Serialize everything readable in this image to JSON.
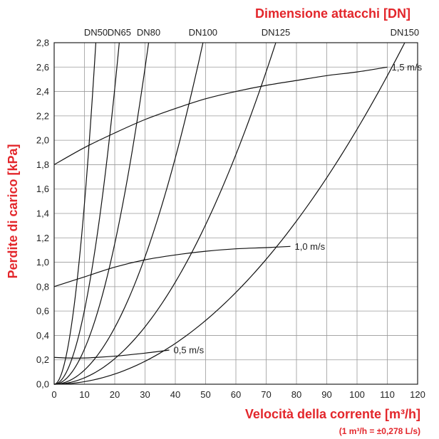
{
  "chart_data": {
    "type": "line",
    "title": "Dimensione attacchi [DN]",
    "xlabel": "Velocità della corrente [m³/h]",
    "ylabel": "Perdite di carico [kPa]",
    "note": "(1 m³/h = ±0,278 L/s)",
    "xlim": [
      0,
      120
    ],
    "ylim": [
      0,
      2.8
    ],
    "xticks": [
      "0",
      "10",
      "20",
      "30",
      "40",
      "50",
      "60",
      "70",
      "80",
      "90",
      "100",
      "110",
      "120"
    ],
    "yticks": [
      "0,0",
      "0,2",
      "0,4",
      "0,6",
      "0,8",
      "1,0",
      "1,2",
      "1,4",
      "1,6",
      "1,8",
      "2,0",
      "2,2",
      "2,4",
      "2,6",
      "2,8"
    ],
    "grid": true,
    "accent_color": "#e3262b",
    "series": [
      {
        "name": "DN50",
        "k": 0.0148
      },
      {
        "name": "DN65",
        "k": 0.00606
      },
      {
        "name": "DN80",
        "k": 0.00288
      },
      {
        "name": "DN100",
        "k": 0.00116
      },
      {
        "name": "DN125",
        "k": 0.000523
      },
      {
        "name": "DN150",
        "k": 0.000209
      }
    ],
    "velocity_curves": [
      {
        "name": "1,5 m/s",
        "points": [
          [
            0,
            1.8
          ],
          [
            10,
            1.94
          ],
          [
            20,
            2.06
          ],
          [
            30,
            2.17
          ],
          [
            40,
            2.26
          ],
          [
            50,
            2.34
          ],
          [
            60,
            2.4
          ],
          [
            70,
            2.45
          ],
          [
            80,
            2.49
          ],
          [
            90,
            2.53
          ],
          [
            100,
            2.56
          ],
          [
            110,
            2.6
          ]
        ]
      },
      {
        "name": "1,0 m/s",
        "points": [
          [
            0,
            0.8
          ],
          [
            10,
            0.88
          ],
          [
            20,
            0.96
          ],
          [
            30,
            1.02
          ],
          [
            40,
            1.06
          ],
          [
            50,
            1.09
          ],
          [
            60,
            1.11
          ],
          [
            70,
            1.12
          ],
          [
            78,
            1.13
          ]
        ]
      },
      {
        "name": "0,5 m/s",
        "points": [
          [
            0,
            0.22
          ],
          [
            5,
            0.215
          ],
          [
            10,
            0.215
          ],
          [
            20,
            0.23
          ],
          [
            30,
            0.255
          ],
          [
            38,
            0.28
          ]
        ]
      }
    ]
  }
}
